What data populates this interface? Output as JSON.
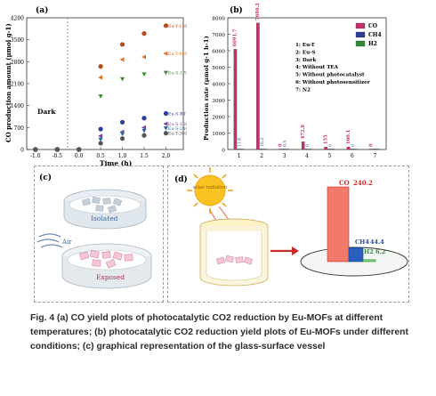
{
  "panel_a": {
    "label": "(a)",
    "ylabel": "CO production amount (μmol g-1)",
    "xlabel": "Time (h)",
    "dark_label": "Dark",
    "y_ticks": [
      "0",
      "700",
      "1400",
      "2100",
      "2800",
      "3500",
      "4200"
    ],
    "x_ticks": [
      "-1.0",
      "-0.5",
      "0.0",
      "0.5",
      "1.0",
      "1.5",
      "2.0"
    ],
    "series_labels": [
      "Eu-T-150",
      "Eu-T-105",
      "Eu-S-170",
      "Eu-S-RT",
      "Eu-S-150",
      "Eu-S-244",
      "Eu-T-200"
    ]
  },
  "panel_b": {
    "label": "(b)",
    "ylabel": "Production rate (μmol g-1 h-1)",
    "y_ticks": [
      "0",
      "1000",
      "2000",
      "3000",
      "4000",
      "5000",
      "6000",
      "7000",
      "8000"
    ],
    "x_ticks": [
      "1",
      "2",
      "3",
      "4",
      "5",
      "6",
      "7"
    ],
    "legend": [
      {
        "name": "CO",
        "color": "#c2306e"
      },
      {
        "name": "CH4",
        "color": "#2a3f9a"
      },
      {
        "name": "H2",
        "color": "#2e8b3a"
      }
    ],
    "conditions": [
      "1: Eu-T",
      "2: Eu-S",
      "3: Dark",
      "4: Without TEA",
      "5: Without photocatalyst",
      "6: Without photosensitizer",
      "7: N2"
    ],
    "bar_labels": [
      "6091.7",
      "7686.1",
      "0",
      "472.8",
      "155",
      "160.1",
      "0"
    ],
    "small_labels": [
      "11.6",
      "16.2",
      "8.5",
      "0",
      "0",
      "0"
    ]
  },
  "panel_c": {
    "label": "(c)",
    "isolated": "Isolated",
    "air": "Air",
    "exposed": "Exposed"
  },
  "panel_d": {
    "label": "(d)",
    "sun_text": "solar radiation",
    "co_label": "CO",
    "co_value": "240.2",
    "ch4_label": "CH4",
    "ch4_value": "44.4",
    "h2_label": "H2",
    "h2_value": "6.2"
  },
  "caption": {
    "text": "Fig. 4 (a) CO yield plots of photocatalytic CO2 reduction by Eu-MOFs at different temperatures; (b) photocatalytic CO2 reduction yield plots of Eu-MOFs under different conditions; (c) graphical representation of the glass-surface vessel"
  },
  "chart_data": [
    {
      "type": "scatter",
      "title": "(a)",
      "xlabel": "Time (h)",
      "ylabel": "CO production amount (μmol g-1)",
      "xlim": [
        -1.2,
        2.4
      ],
      "ylim": [
        0,
        4200
      ],
      "x": [
        -1.0,
        -0.5,
        0.0,
        0.5,
        1.0,
        1.5,
        2.0
      ],
      "series": [
        {
          "name": "Eu-T-150",
          "values": [
            0,
            0,
            0,
            2650,
            3350,
            3700,
            3950
          ],
          "color": "#b94a1c"
        },
        {
          "name": "Eu-T-105",
          "values": [
            0,
            0,
            0,
            2300,
            2870,
            2950,
            3060
          ],
          "color": "#e07020"
        },
        {
          "name": "Eu-S-170",
          "values": [
            0,
            0,
            0,
            1700,
            2250,
            2400,
            2450
          ],
          "color": "#3a8c2a"
        },
        {
          "name": "Eu-S-RT",
          "values": [
            0,
            0,
            0,
            650,
            870,
            1000,
            1150
          ],
          "color": "#2a3f9a"
        },
        {
          "name": "Eu-S-150",
          "values": [
            0,
            0,
            0,
            430,
            560,
            700,
            820
          ],
          "color": "#7a3fa0"
        },
        {
          "name": "Eu-S-244",
          "values": [
            0,
            0,
            0,
            320,
            500,
            600,
            680
          ],
          "color": "#2a6aa0"
        },
        {
          "name": "Eu-T-200",
          "values": [
            0,
            0,
            0,
            200,
            350,
            450,
            520
          ],
          "color": "#555555"
        }
      ]
    },
    {
      "type": "bar",
      "title": "(b)",
      "xlabel": "",
      "ylabel": "Production rate (μmol g-1 h-1)",
      "ylim": [
        0,
        8000
      ],
      "categories": [
        "1",
        "2",
        "3",
        "4",
        "5",
        "6",
        "7"
      ],
      "series": [
        {
          "name": "CO",
          "values": [
            6091.7,
            7686.1,
            0,
            472.8,
            155,
            160.1,
            0
          ]
        },
        {
          "name": "CH4",
          "values": [
            11.6,
            16.2,
            0,
            8.5,
            0,
            0,
            0
          ]
        },
        {
          "name": "H2",
          "values": [
            0,
            0,
            0,
            0,
            0,
            0,
            0
          ]
        }
      ]
    },
    {
      "type": "bar",
      "title": "(d)",
      "categories": [
        "CO",
        "CH4",
        "H2"
      ],
      "values": [
        240.2,
        44.4,
        6.2
      ]
    }
  ]
}
